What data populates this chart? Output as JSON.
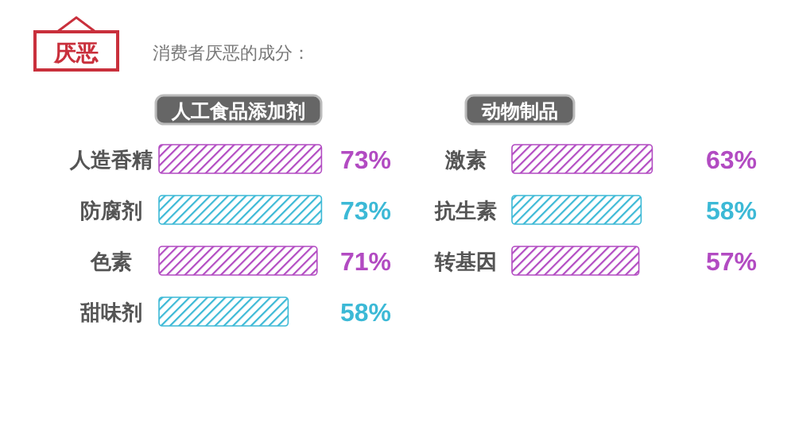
{
  "chart_data": [
    {
      "type": "bar",
      "orientation": "horizontal",
      "title": "消费者厌恶的成分：",
      "annotations": [
        "厌恶"
      ],
      "subtitle": "人工食品添加剂",
      "value_labels": [
        "73%",
        "73%",
        "71%",
        "58%"
      ],
      "categories": [
        "人造香精",
        "防腐剂",
        "色素",
        "甜味剂"
      ],
      "values": [
        73,
        73,
        71,
        58
      ],
      "colors": [
        "#b24bc2",
        "#3cb9d6",
        "#b24bc2",
        "#3cb9d6"
      ]
    },
    {
      "type": "bar",
      "orientation": "horizontal",
      "subtitle": "动物制品",
      "value_labels": [
        "63%",
        "58%",
        "57%"
      ],
      "categories": [
        "激素",
        "抗生素",
        "转基因"
      ],
      "values": [
        63,
        58,
        57
      ],
      "colors": [
        "#b24bc2",
        "#3cb9d6",
        "#b24bc2"
      ]
    }
  ]
}
